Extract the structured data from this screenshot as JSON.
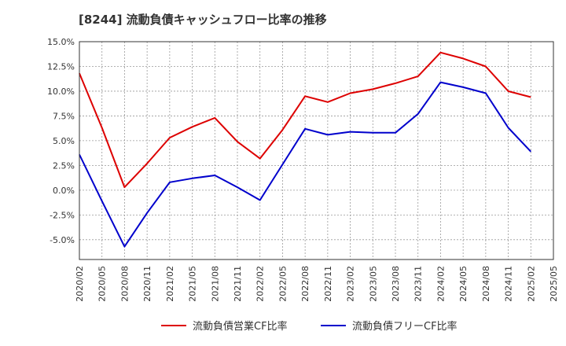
{
  "chart_data": {
    "type": "line",
    "title": "[8244]  流動負債キャッシュフロー比率の推移",
    "xlabel": "",
    "ylabel": "",
    "grid": true,
    "legend_position": "bottom",
    "ylim": [
      -7.0,
      15.0
    ],
    "y_ticks": [
      15.0,
      12.5,
      10.0,
      7.5,
      5.0,
      2.5,
      0.0,
      -2.5,
      -5.0
    ],
    "y_tick_labels": [
      "15.0%",
      "12.5%",
      "10.0%",
      "7.5%",
      "5.0%",
      "2.5%",
      "0.0%",
      "-2.5%",
      "-5.0%"
    ],
    "x_tick_labels": [
      "2020/02",
      "2020/05",
      "2020/08",
      "2020/11",
      "2021/02",
      "2021/05",
      "2021/08",
      "2021/11",
      "2022/02",
      "2022/05",
      "2022/08",
      "2022/11",
      "2023/02",
      "2023/05",
      "2023/08",
      "2023/11",
      "2024/02",
      "2024/05",
      "2024/08",
      "2024/11",
      "2025/02",
      "2025/05"
    ],
    "categories": [
      "2020/02",
      "2020/05",
      "2020/08",
      "2020/11",
      "2021/02",
      "2021/05",
      "2021/08",
      "2021/11",
      "2022/02",
      "2022/05",
      "2022/08",
      "2022/11",
      "2023/02",
      "2023/05",
      "2023/08",
      "2023/11",
      "2024/02",
      "2024/05",
      "2024/08",
      "2024/11",
      "2025/02"
    ],
    "series": [
      {
        "name": "流動負債営業CF比率",
        "color": "#dd0000",
        "values": [
          11.8,
          6.3,
          0.3,
          2.7,
          5.3,
          6.4,
          7.3,
          4.9,
          3.2,
          6.1,
          9.5,
          8.9,
          9.8,
          10.2,
          10.8,
          11.5,
          13.9,
          13.3,
          12.5,
          10.0,
          9.4
        ]
      },
      {
        "name": "流動負債フリーCF比率",
        "color": "#0000cc",
        "values": [
          3.6,
          -1.1,
          -5.7,
          -2.3,
          0.8,
          1.2,
          1.5,
          0.3,
          -1.0,
          2.6,
          6.2,
          5.6,
          5.9,
          5.8,
          5.8,
          7.7,
          10.9,
          10.4,
          9.8,
          6.3,
          3.9
        ]
      }
    ]
  }
}
